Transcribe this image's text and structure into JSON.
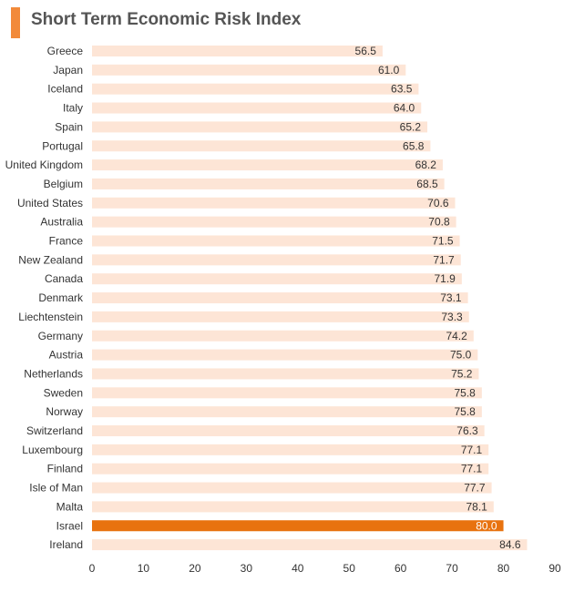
{
  "chart_data": {
    "type": "bar",
    "orientation": "horizontal",
    "title": "Short Term Economic Risk Index",
    "categories": [
      "Greece",
      "Japan",
      "Iceland",
      "Italy",
      "Spain",
      "Portugal",
      "United Kingdom",
      "Belgium",
      "United States",
      "Australia",
      "France",
      "New Zealand",
      "Canada",
      "Denmark",
      "Liechtenstein",
      "Germany",
      "Austria",
      "Netherlands",
      "Sweden",
      "Norway",
      "Switzerland",
      "Luxembourg",
      "Finland",
      "Isle of Man",
      "Malta",
      "Israel",
      "Ireland"
    ],
    "values": [
      56.5,
      61.0,
      63.5,
      64.0,
      65.2,
      65.8,
      68.2,
      68.5,
      70.6,
      70.8,
      71.5,
      71.7,
      71.9,
      73.1,
      73.3,
      74.2,
      75.0,
      75.2,
      75.8,
      75.8,
      76.3,
      77.1,
      77.1,
      77.7,
      78.1,
      80.0,
      84.6
    ],
    "value_labels": [
      "56.5",
      "61.0",
      "63.5",
      "64.0",
      "65.2",
      "65.8",
      "68.2",
      "68.5",
      "70.6",
      "70.8",
      "71.5",
      "71.7",
      "71.9",
      "73.1",
      "73.3",
      "74.2",
      "75.0",
      "75.2",
      "75.8",
      "75.8",
      "76.3",
      "77.1",
      "77.1",
      "77.7",
      "78.1",
      "80.0",
      "84.6"
    ],
    "highlight": "Israel",
    "xlim": [
      0,
      90
    ],
    "xticks": [
      "0",
      "10",
      "20",
      "30",
      "40",
      "50",
      "60",
      "70",
      "80",
      "90"
    ],
    "xlabel": "",
    "ylabel": "",
    "grid": false,
    "legend": "none",
    "colors": {
      "bar": "#fde5d6",
      "highlight": "#e8720f",
      "title_accent": "#f28a3a"
    }
  }
}
